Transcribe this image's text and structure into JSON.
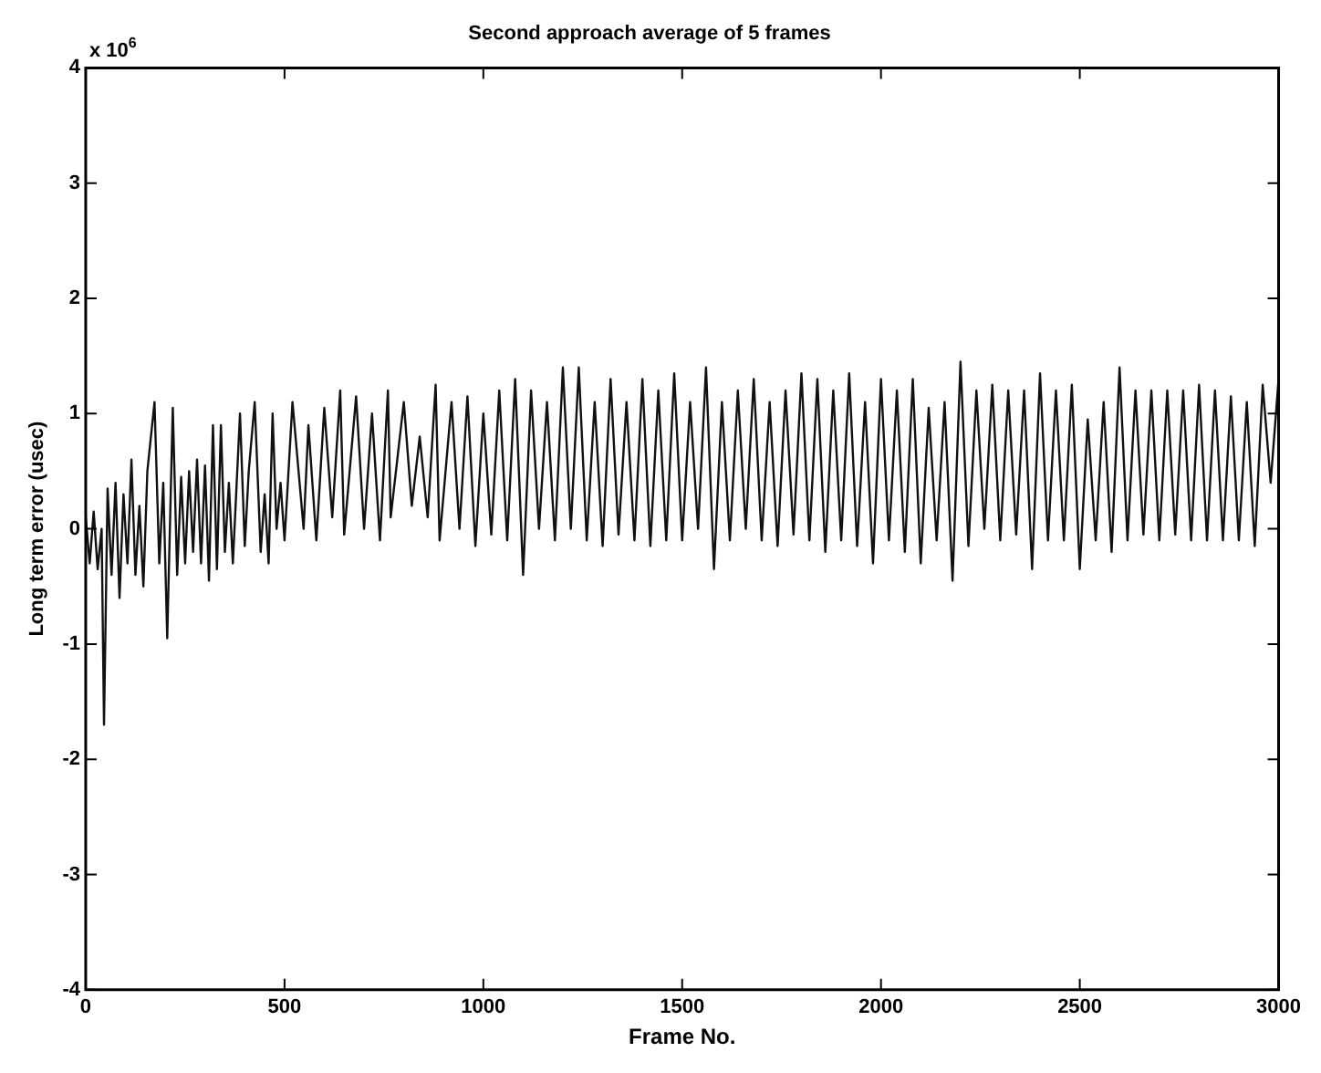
{
  "chart_data": {
    "type": "line",
    "title": "Second approach average of 5 frames",
    "xlabel": "Frame No.",
    "ylabel": "Long term error (usec)",
    "annotations": [
      "x 10$^{6}$"
    ],
    "xlim": [
      0,
      3000
    ],
    "xticks": [
      0,
      500,
      1000,
      1500,
      2000,
      2500,
      3000
    ],
    "ylim": [
      -4,
      4
    ],
    "yticks": [
      -4,
      -3,
      -2,
      -1,
      0,
      1,
      2,
      3,
      4
    ],
    "grid": false,
    "legend": false,
    "marker": "none",
    "line_style": "solid",
    "series": [
      {
        "color": "#111111",
        "x": [
          0,
          10,
          20,
          30,
          40,
          46,
          55,
          65,
          75,
          85,
          95,
          105,
          115,
          125,
          135,
          145,
          155,
          173,
          185,
          195,
          205,
          219,
          230,
          240,
          250,
          260,
          270,
          280,
          290,
          300,
          310,
          320,
          330,
          340,
          350,
          360,
          370,
          388,
          400,
          410,
          425,
          440,
          450,
          460,
          470,
          480,
          490,
          500,
          520,
          548,
          560,
          580,
          600,
          620,
          640,
          650,
          680,
          700,
          720,
          740,
          760,
          767,
          800,
          820,
          840,
          860,
          880,
          890,
          920,
          940,
          960,
          980,
          1000,
          1020,
          1040,
          1060,
          1080,
          1100,
          1120,
          1140,
          1160,
          1180,
          1200,
          1220,
          1240,
          1260,
          1280,
          1300,
          1320,
          1340,
          1360,
          1380,
          1400,
          1420,
          1440,
          1460,
          1480,
          1500,
          1520,
          1540,
          1560,
          1580,
          1600,
          1620,
          1640,
          1660,
          1680,
          1700,
          1720,
          1740,
          1760,
          1780,
          1800,
          1820,
          1840,
          1860,
          1880,
          1900,
          1920,
          1940,
          1960,
          1980,
          2000,
          2020,
          2040,
          2060,
          2080,
          2100,
          2120,
          2140,
          2160,
          2180,
          2200,
          2220,
          2240,
          2260,
          2280,
          2300,
          2320,
          2340,
          2360,
          2380,
          2400,
          2420,
          2440,
          2460,
          2480,
          2500,
          2520,
          2540,
          2560,
          2580,
          2600,
          2620,
          2640,
          2660,
          2680,
          2700,
          2720,
          2740,
          2760,
          2780,
          2800,
          2820,
          2840,
          2860,
          2880,
          2900,
          2920,
          2940,
          2960,
          2980,
          3000
        ],
        "values": [
          0.1,
          -0.3,
          0.15,
          -0.35,
          0.0,
          -1.7,
          0.35,
          -0.4,
          0.4,
          -0.6,
          0.3,
          -0.3,
          0.6,
          -0.4,
          0.2,
          -0.5,
          0.5,
          1.1,
          -0.3,
          0.4,
          -0.95,
          1.05,
          -0.4,
          0.45,
          -0.3,
          0.5,
          -0.2,
          0.6,
          -0.3,
          0.55,
          -0.45,
          0.9,
          -0.35,
          0.9,
          -0.2,
          0.4,
          -0.3,
          1.0,
          -0.15,
          0.5,
          1.1,
          -0.2,
          0.3,
          -0.3,
          1.0,
          0.0,
          0.4,
          -0.1,
          1.1,
          0.0,
          0.9,
          -0.1,
          1.05,
          0.1,
          1.2,
          -0.05,
          1.15,
          0.0,
          1.0,
          -0.1,
          1.2,
          0.1,
          1.1,
          0.2,
          0.8,
          0.1,
          1.25,
          -0.1,
          1.1,
          0.0,
          1.15,
          -0.15,
          1.0,
          -0.05,
          1.2,
          -0.1,
          1.3,
          -0.4,
          1.2,
          0.0,
          1.1,
          -0.1,
          1.4,
          0.0,
          1.4,
          -0.1,
          1.1,
          -0.15,
          1.3,
          -0.05,
          1.1,
          -0.1,
          1.3,
          -0.15,
          1.2,
          -0.1,
          1.35,
          -0.1,
          1.1,
          0.0,
          1.4,
          -0.35,
          1.1,
          -0.1,
          1.2,
          0.0,
          1.3,
          -0.1,
          1.1,
          -0.15,
          1.2,
          -0.05,
          1.35,
          -0.1,
          1.3,
          -0.2,
          1.2,
          -0.1,
          1.35,
          -0.15,
          1.1,
          -0.3,
          1.3,
          -0.1,
          1.2,
          -0.2,
          1.3,
          -0.3,
          1.05,
          -0.1,
          1.1,
          -0.45,
          1.45,
          -0.15,
          1.2,
          0.0,
          1.25,
          -0.1,
          1.2,
          -0.05,
          1.2,
          -0.35,
          1.35,
          -0.1,
          1.2,
          -0.1,
          1.25,
          -0.35,
          0.95,
          -0.1,
          1.1,
          -0.2,
          1.4,
          -0.1,
          1.2,
          -0.05,
          1.2,
          -0.1,
          1.2,
          -0.05,
          1.2,
          -0.1,
          1.25,
          -0.1,
          1.2,
          -0.1,
          1.15,
          -0.1,
          1.1,
          -0.15,
          1.25,
          0.4,
          1.3
        ]
      }
    ]
  }
}
